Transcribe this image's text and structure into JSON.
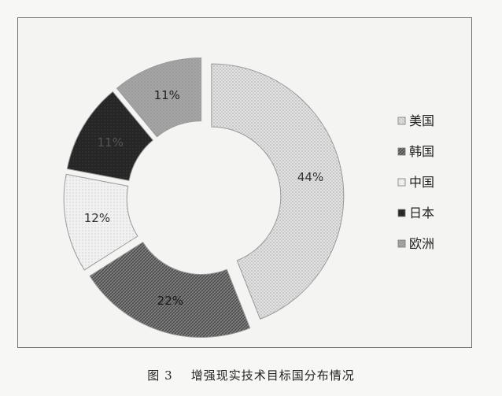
{
  "caption": {
    "figure_no": "图 3",
    "text": "增强现实技术目标国分布情况"
  },
  "chart_data": {
    "type": "pie",
    "donut": true,
    "categories": [
      "美国",
      "韩国",
      "中国",
      "日本",
      "欧洲"
    ],
    "values": [
      44,
      22,
      12,
      11,
      11
    ],
    "data_labels": [
      "44%",
      "22%",
      "12%",
      "11%",
      "11%"
    ],
    "legend_position": "right",
    "colors": [
      "#d8d8d8",
      "#777777",
      "#ececec",
      "#1e1e1e",
      "#a9a9a9"
    ],
    "label_colors": [
      "#333333",
      "#1a1a1a",
      "#333333",
      "#555555",
      "#222222"
    ]
  }
}
